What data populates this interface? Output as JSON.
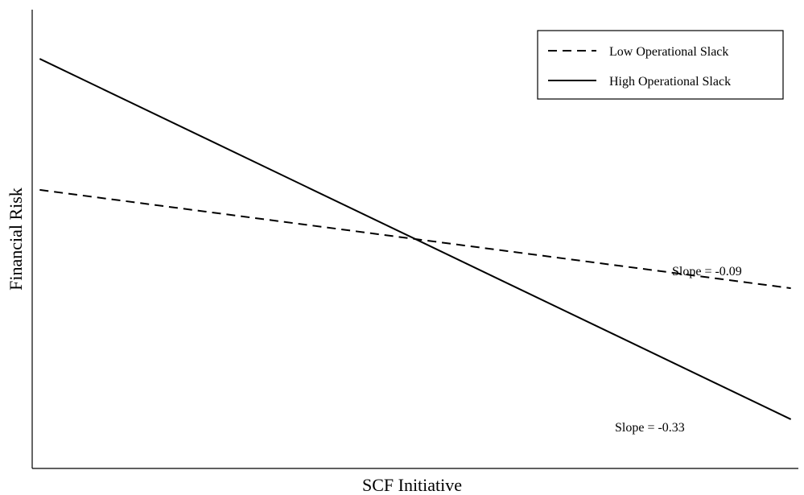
{
  "chart_data": {
    "type": "line",
    "title": "",
    "xlabel": "SCF Initiative",
    "ylabel": "Financial Risk",
    "x": [
      -1,
      1
    ],
    "xlim": [
      -1.02,
      1.02
    ],
    "ylim": [
      -0.42,
      0.42
    ],
    "grid": false,
    "legend_position": "top-right",
    "series": [
      {
        "name": "Low Operational Slack",
        "values": [
          0.09,
          -0.09
        ],
        "style": "dashed",
        "color": "#000000"
      },
      {
        "name": "High Operational Slack",
        "values": [
          0.33,
          -0.33
        ],
        "style": "solid",
        "color": "#000000"
      }
    ],
    "annotations": [
      {
        "text": "Slope = -0.09",
        "series": 0
      },
      {
        "text": "Slope = -0.33",
        "series": 1
      }
    ]
  }
}
